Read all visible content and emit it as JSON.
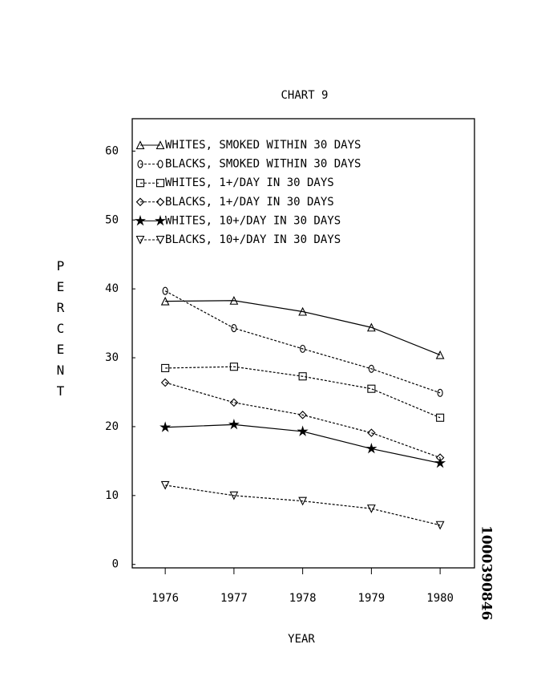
{
  "chart_data": {
    "type": "line",
    "title": "CHART 9",
    "x_label": "YEAR",
    "y_label": "PERCENT",
    "side_note": "1000390846",
    "x": [
      1976,
      1977,
      1978,
      1979,
      1980
    ],
    "xlim": [
      1975.52,
      1980.5
    ],
    "xticks": [
      1976,
      1977,
      1978,
      1979,
      1980
    ],
    "ylim": [
      -0.5,
      64.7
    ],
    "yticks": [
      0,
      10,
      20,
      30,
      40,
      50,
      60
    ],
    "series": [
      {
        "name": "WHITES, SMOKED WITHIN 30 DAYS",
        "color": "#000000",
        "marker": "triangle",
        "dashed": false,
        "values": [
          38.2,
          38.3,
          36.7,
          34.4,
          30.4
        ]
      },
      {
        "name": "BLACKS, SMOKED WITHIN 30 DAYS",
        "color": "#000000",
        "marker": "circle",
        "dashed": true,
        "values": [
          39.7,
          34.3,
          31.3,
          28.4,
          24.9
        ]
      },
      {
        "name": "WHITES, 1+/DAY IN 30 DAYS",
        "color": "#000000",
        "marker": "square",
        "dashed": true,
        "values": [
          28.5,
          28.7,
          27.3,
          25.5,
          21.3
        ]
      },
      {
        "name": "BLACKS, 1+/DAY IN 30 DAYS",
        "color": "#000000",
        "marker": "diamond",
        "dashed": true,
        "values": [
          26.4,
          23.5,
          21.7,
          19.1,
          15.5
        ]
      },
      {
        "name": "WHITES, 10+/DAY IN 30 DAYS",
        "color": "#000000",
        "marker": "star",
        "dashed": false,
        "values": [
          19.9,
          20.3,
          19.3,
          16.8,
          14.7
        ]
      },
      {
        "name": "BLACKS, 10+/DAY IN 30 DAYS",
        "color": "#000000",
        "marker": "triangle-down",
        "dashed": true,
        "values": [
          11.5,
          10.0,
          9.2,
          8.1,
          5.7
        ]
      }
    ]
  }
}
